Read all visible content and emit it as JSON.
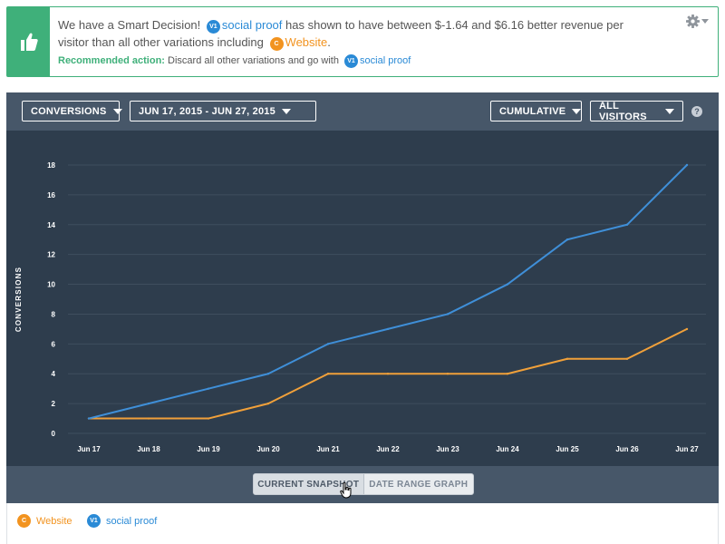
{
  "banner": {
    "intro": "We have a Smart Decision!",
    "winner_badge": "V1",
    "winner_name": "social proof",
    "mid_text": "has shown to have between $-1.64 and $6.16 better revenue per visitor than all other variations including",
    "other_badge": "C",
    "other_name": "Website",
    "rec_label": "Recommended action:",
    "rec_text": "Discard all other variations and go with",
    "rec_badge": "V1",
    "rec_name": "social proof",
    "icons": {
      "main": "thumbs-up-icon",
      "settings": "gear-icon"
    }
  },
  "toolbar": {
    "metric": "CONVERSIONS",
    "date_range": "JUN 17, 2015 - JUN 27, 2015",
    "mode": "CUMULATIVE",
    "segment": "ALL VISITORS",
    "help": "?"
  },
  "view_toggle": {
    "snapshot": "CURRENT SNAPSHOT",
    "range": "DATE RANGE GRAPH"
  },
  "legend": [
    {
      "badge": "C",
      "name": "Website",
      "color": "#f2931f"
    },
    {
      "badge": "V1",
      "name": "social proof",
      "color": "#2a8ad6"
    }
  ],
  "chart_data": {
    "type": "line",
    "ylabel": "CONVERSIONS",
    "xlabel": "",
    "categories": [
      "Jun 17",
      "Jun 18",
      "Jun 19",
      "Jun 20",
      "Jun 21",
      "Jun 22",
      "Jun 23",
      "Jun 24",
      "Jun 25",
      "Jun 26",
      "Jun 27"
    ],
    "yticks": [
      0,
      2,
      4,
      6,
      8,
      10,
      12,
      14,
      16,
      18
    ],
    "ylim": [
      0,
      18
    ],
    "grid": true,
    "series": [
      {
        "name": "social proof",
        "color": "#3f8fd8",
        "values": [
          1,
          2,
          3,
          4,
          6,
          7,
          8,
          10,
          13,
          14,
          18
        ]
      },
      {
        "name": "Website",
        "color": "#f0a03a",
        "values": [
          1,
          1,
          1,
          2,
          4,
          4,
          4,
          4,
          5,
          5,
          7
        ]
      }
    ]
  }
}
